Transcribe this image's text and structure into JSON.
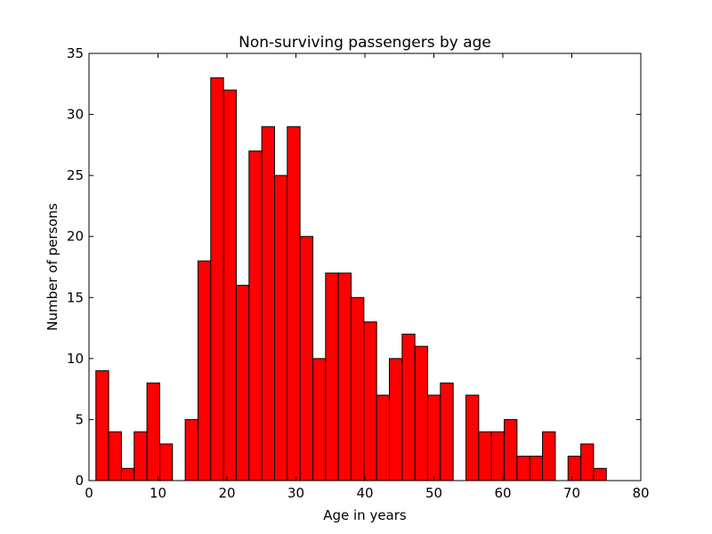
{
  "chart_data": {
    "type": "bar",
    "title": "Non-surviving passengers by age",
    "xlabel": "Age in years",
    "ylabel": "Number of persons",
    "xlim": [
      0,
      80
    ],
    "ylim": [
      0,
      35
    ],
    "x_ticks": [
      0,
      10,
      20,
      30,
      40,
      50,
      60,
      70,
      80
    ],
    "y_ticks": [
      0,
      5,
      10,
      15,
      20,
      25,
      30,
      35
    ],
    "grid": false,
    "bar_color": "#ff0000",
    "edge_color": "#000000",
    "bins": [
      {
        "x0": 1.0,
        "x1": 2.85,
        "count": 9
      },
      {
        "x0": 2.85,
        "x1": 4.7,
        "count": 4
      },
      {
        "x0": 4.7,
        "x1": 6.55,
        "count": 1
      },
      {
        "x0": 6.55,
        "x1": 8.4,
        "count": 4
      },
      {
        "x0": 8.4,
        "x1": 10.25,
        "count": 8
      },
      {
        "x0": 10.25,
        "x1": 12.1,
        "count": 3
      },
      {
        "x0": 12.1,
        "x1": 13.95,
        "count": 0
      },
      {
        "x0": 13.95,
        "x1": 15.8,
        "count": 5
      },
      {
        "x0": 15.8,
        "x1": 17.65,
        "count": 18
      },
      {
        "x0": 17.65,
        "x1": 19.5,
        "count": 33
      },
      {
        "x0": 19.5,
        "x1": 21.35,
        "count": 32
      },
      {
        "x0": 21.35,
        "x1": 23.2,
        "count": 16
      },
      {
        "x0": 23.2,
        "x1": 25.05,
        "count": 27
      },
      {
        "x0": 25.05,
        "x1": 26.9,
        "count": 29
      },
      {
        "x0": 26.9,
        "x1": 28.75,
        "count": 25
      },
      {
        "x0": 28.75,
        "x1": 30.6,
        "count": 29
      },
      {
        "x0": 30.6,
        "x1": 32.45,
        "count": 20
      },
      {
        "x0": 32.45,
        "x1": 34.3,
        "count": 10
      },
      {
        "x0": 34.3,
        "x1": 36.15,
        "count": 17
      },
      {
        "x0": 36.15,
        "x1": 38.0,
        "count": 17
      },
      {
        "x0": 38.0,
        "x1": 39.85,
        "count": 15
      },
      {
        "x0": 39.85,
        "x1": 41.7,
        "count": 13
      },
      {
        "x0": 41.7,
        "x1": 43.55,
        "count": 7
      },
      {
        "x0": 43.55,
        "x1": 45.4,
        "count": 10
      },
      {
        "x0": 45.4,
        "x1": 47.25,
        "count": 12
      },
      {
        "x0": 47.25,
        "x1": 49.1,
        "count": 11
      },
      {
        "x0": 49.1,
        "x1": 50.95,
        "count": 7
      },
      {
        "x0": 50.95,
        "x1": 52.8,
        "count": 8
      },
      {
        "x0": 52.8,
        "x1": 54.65,
        "count": 0
      },
      {
        "x0": 54.65,
        "x1": 56.5,
        "count": 7
      },
      {
        "x0": 56.5,
        "x1": 58.35,
        "count": 4
      },
      {
        "x0": 58.35,
        "x1": 60.2,
        "count": 4
      },
      {
        "x0": 60.2,
        "x1": 62.05,
        "count": 5
      },
      {
        "x0": 62.05,
        "x1": 63.9,
        "count": 2
      },
      {
        "x0": 63.9,
        "x1": 65.75,
        "count": 2
      },
      {
        "x0": 65.75,
        "x1": 67.6,
        "count": 4
      },
      {
        "x0": 67.6,
        "x1": 69.45,
        "count": 0
      },
      {
        "x0": 69.45,
        "x1": 71.3,
        "count": 2
      },
      {
        "x0": 71.3,
        "x1": 73.15,
        "count": 3
      },
      {
        "x0": 73.15,
        "x1": 75.0,
        "count": 1
      }
    ]
  }
}
